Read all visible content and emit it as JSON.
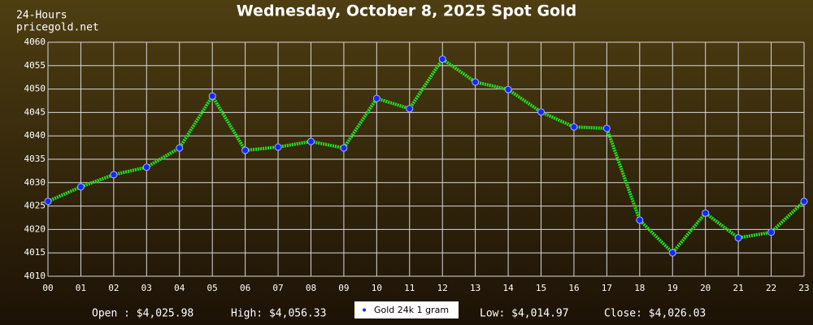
{
  "chart_data": {
    "type": "line",
    "title": "Wednesday, October 8, 2025 Spot Gold",
    "period_label": "24-Hours",
    "source": "pricegold.net",
    "x": [
      0,
      1,
      2,
      3,
      4,
      5,
      6,
      7,
      8,
      9,
      10,
      11,
      12,
      13,
      14,
      15,
      16,
      17,
      18,
      19,
      20,
      21,
      22,
      23
    ],
    "xlim": [
      0,
      23
    ],
    "xticks": [
      {
        "value": 0,
        "label": "00"
      },
      {
        "value": 1,
        "label": "01"
      },
      {
        "value": 2,
        "label": "02"
      },
      {
        "value": 3,
        "label": "03"
      },
      {
        "value": 4,
        "label": "04"
      },
      {
        "value": 5,
        "label": "05"
      },
      {
        "value": 6,
        "label": "06"
      },
      {
        "value": 7,
        "label": "07"
      },
      {
        "value": 8,
        "label": "08"
      },
      {
        "value": 9,
        "label": "09"
      },
      {
        "value": 10,
        "label": "10"
      },
      {
        "value": 11,
        "label": "11"
      },
      {
        "value": 12,
        "label": "12"
      },
      {
        "value": 13,
        "label": "13"
      },
      {
        "value": 14,
        "label": "14"
      },
      {
        "value": 15,
        "label": "15"
      },
      {
        "value": 16,
        "label": "16"
      },
      {
        "value": 17,
        "label": "17"
      },
      {
        "value": 18,
        "label": "18"
      },
      {
        "value": 19,
        "label": "19"
      },
      {
        "value": 20,
        "label": "20"
      },
      {
        "value": 21,
        "label": "21"
      },
      {
        "value": 22,
        "label": "22"
      },
      {
        "value": 23,
        "label": "23"
      }
    ],
    "ylim": [
      4010,
      4060
    ],
    "yticks": [
      4010,
      4015,
      4020,
      4025,
      4030,
      4035,
      4040,
      4045,
      4050,
      4055,
      4060
    ],
    "grid": true,
    "series": [
      {
        "name": "Gold 24k 1 gram",
        "color": "#22e022",
        "marker_color": "#1428ff",
        "values": [
          4026.0,
          4029.1,
          4031.7,
          4033.3,
          4037.4,
          4048.5,
          4036.9,
          4037.6,
          4038.8,
          4037.4,
          4048.0,
          4045.8,
          4056.4,
          4051.5,
          4049.9,
          4045.1,
          4041.9,
          4041.6,
          4022.0,
          4015.0,
          4023.5,
          4018.2,
          4019.4,
          4026.0
        ]
      }
    ],
    "stats": [
      "Open : $4,025.98",
      "High: $4,056.33",
      "Low: $4,014.97",
      "Close: $4,026.03"
    ]
  }
}
